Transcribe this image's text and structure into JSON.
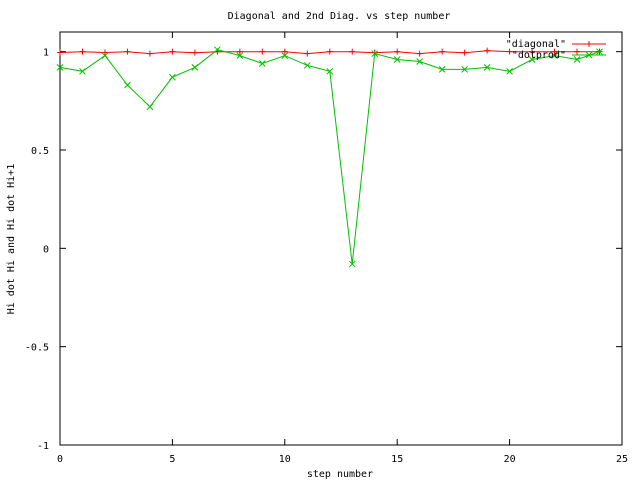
{
  "chart_data": {
    "type": "line",
    "title": "Diagonal and 2nd Diag. vs step number",
    "xlabel": "step number",
    "ylabel": "Hi dot Hi and Hi dot Hi+1",
    "xlim": [
      0,
      25
    ],
    "ylim": [
      -1,
      1.1
    ],
    "xticks": [
      0,
      5,
      10,
      15,
      20,
      25
    ],
    "yticks": [
      -1,
      -0.5,
      0,
      0.5,
      1
    ],
    "xtick_labels": [
      "0",
      "5",
      "10",
      "15",
      "20",
      "25"
    ],
    "ytick_labels": [
      "-1",
      "-0.5",
      "0",
      "0.5",
      "1"
    ],
    "grid": false,
    "legend_position": "top-right",
    "series": [
      {
        "name": "\"diagonal\"",
        "color": "#ff0000",
        "marker": "plus",
        "x": [
          0,
          1,
          2,
          3,
          4,
          5,
          6,
          7,
          8,
          9,
          10,
          11,
          12,
          13,
          14,
          15,
          16,
          17,
          18,
          19,
          20,
          21,
          22,
          23,
          24
        ],
        "values": [
          0.996,
          1.0,
          0.996,
          1.0,
          0.99,
          1.0,
          0.995,
          1.0,
          1.0,
          1.0,
          1.0,
          0.99,
          1.0,
          1.0,
          0.995,
          1.0,
          0.99,
          1.0,
          0.995,
          1.005,
          1.0,
          1.0,
          1.0,
          1.0,
          1.0
        ]
      },
      {
        "name": "\"dotprod\"",
        "color": "#00c000",
        "marker": "cross",
        "x": [
          0,
          1,
          2,
          3,
          4,
          5,
          6,
          7,
          8,
          9,
          10,
          11,
          12,
          13,
          14,
          15,
          16,
          17,
          18,
          19,
          20,
          21,
          22,
          23,
          24
        ],
        "values": [
          0.92,
          0.9,
          0.98,
          0.83,
          0.72,
          0.87,
          0.92,
          1.01,
          0.98,
          0.94,
          0.98,
          0.93,
          0.9,
          -0.08,
          0.99,
          0.96,
          0.95,
          0.91,
          0.91,
          0.92,
          0.9,
          0.96,
          0.98,
          0.96,
          1.0
        ]
      }
    ]
  }
}
